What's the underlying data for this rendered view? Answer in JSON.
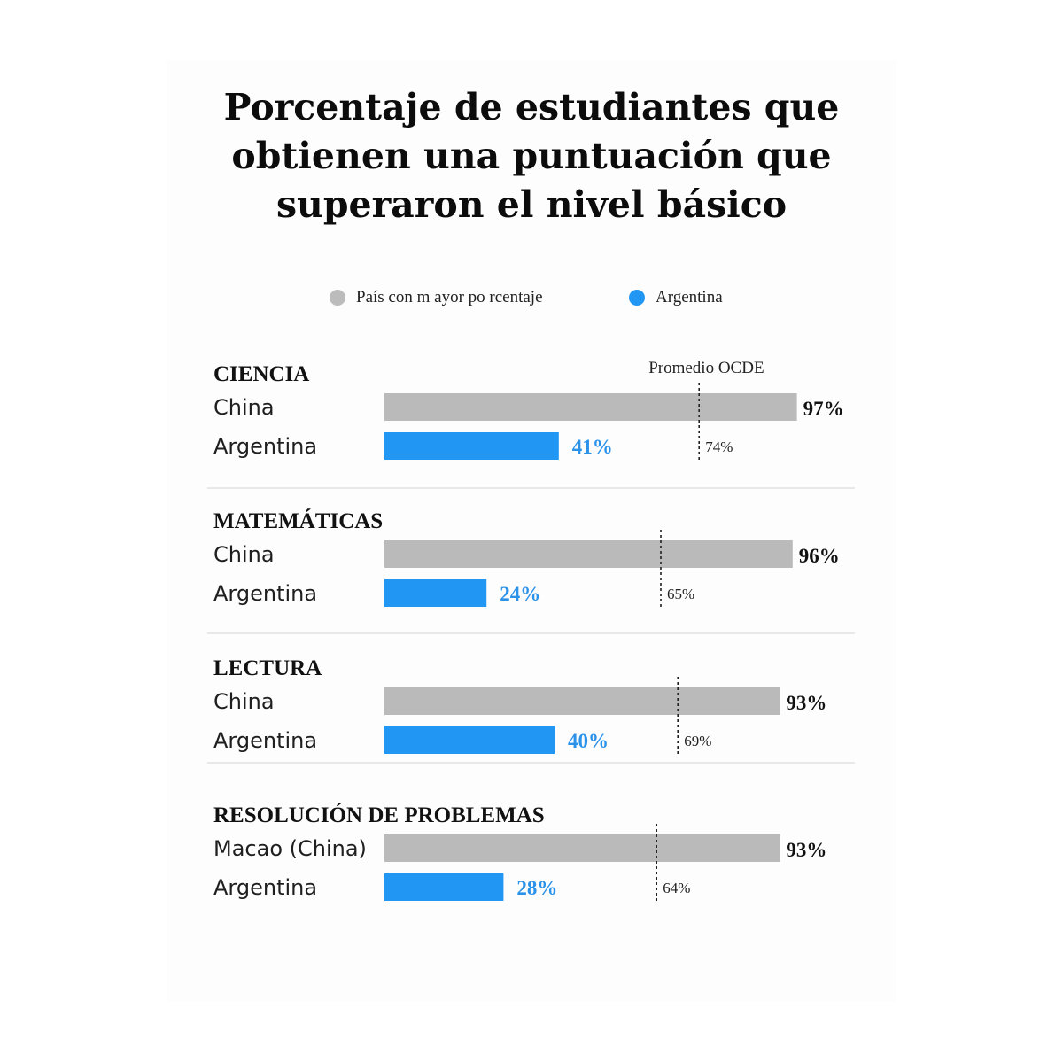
{
  "title": "Porcentaje de estudiantes que obtienen una puntuación que superaron el nivel básico",
  "legend": [
    {
      "label": "País con m  ayor po rcentaje",
      "color": "#bcbcbc"
    },
    {
      "label": "Argentina",
      "color": "#2196f3"
    }
  ],
  "colors": {
    "gray_bar": "#bababa",
    "blue_bar": "#2196f3",
    "blue_text": "#2b92ea"
  },
  "chart_data": {
    "type": "bar",
    "orientation": "horizontal",
    "xlim": [
      0,
      100
    ],
    "unit": "%",
    "reference_label": "Promedio OCDE",
    "groups": [
      {
        "title": "CIENCIA",
        "top_label": "China",
        "top_value": 97,
        "bottom_label": "Argentina",
        "bottom_value": 41,
        "ocde_avg": 74
      },
      {
        "title": "MATEMÁTICAS",
        "top_label": "China",
        "top_value": 96,
        "bottom_label": "Argentina",
        "bottom_value": 24,
        "ocde_avg": 65
      },
      {
        "title": "LECTURA",
        "top_label": "China",
        "top_value": 93,
        "bottom_label": "Argentina",
        "bottom_value": 40,
        "ocde_avg": 69
      },
      {
        "title": "RESOLUCIÓN DE PROBLEMAS",
        "top_label": "Macao (China)",
        "top_value": 93,
        "bottom_label": "Argentina",
        "bottom_value": 28,
        "ocde_avg": 64
      }
    ]
  }
}
